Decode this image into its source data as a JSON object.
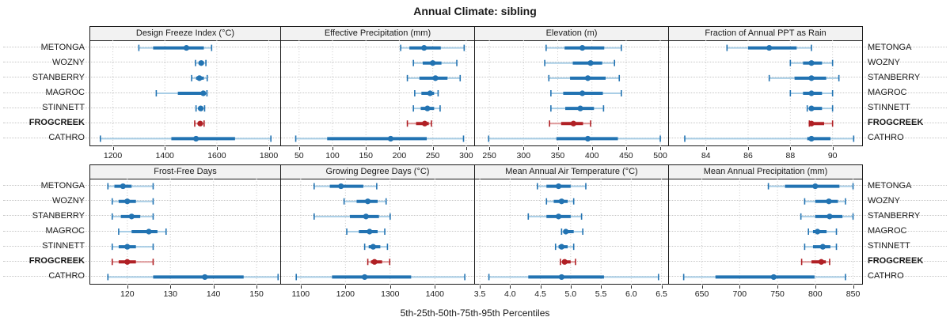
{
  "title": "Annual Climate: sibling",
  "caption": "5th-25th-50th-75th-95th Percentiles",
  "sites": [
    "METONGA",
    "WOZNY",
    "STANBERRY",
    "MAGROC",
    "STINNETT",
    "FROGCREEK",
    "CATHRO"
  ],
  "highlight_site": "FROGCREEK",
  "colors": {
    "series_normal": "#2273b2",
    "series_normal_light": "#a9cee6",
    "series_highlight": "#b02025",
    "series_highlight_light": "#e09a9b",
    "grid": "#c9c9c9",
    "header_bg": "#f2f2f2",
    "border": "#1a1a1a"
  },
  "chart_data": {
    "type": "dotplot-percentiles",
    "layout": "2 rows x 4 columns trellis",
    "percentile_order": [
      "5th",
      "25th",
      "50th",
      "75th",
      "95th"
    ],
    "legend_note": "thin light line = 5th-95th, thick line = 25th-75th, dot = 50th percentile",
    "panels": [
      {
        "title": "Design Freeze Index (°C)",
        "row": 0,
        "col": 0,
        "xlim": [
          1113,
          1844
        ],
        "ticks": [
          1200,
          1400,
          1600,
          1800
        ],
        "tick_labels": [
          "1200",
          "1400",
          "1600",
          "1800"
        ],
        "values": {
          "METONGA": [
            1300,
            1355,
            1483,
            1550,
            1580
          ],
          "WOZNY": [
            1518,
            1530,
            1540,
            1550,
            1558
          ],
          "STANBERRY": [
            1503,
            1520,
            1533,
            1550,
            1563
          ],
          "MAGROC": [
            1367,
            1450,
            1548,
            1556,
            1562
          ],
          "STINNETT": [
            1520,
            1530,
            1538,
            1547,
            1553
          ],
          "FROGCREEK": [
            1515,
            1527,
            1536,
            1545,
            1551
          ],
          "CATHRO": [
            1152,
            1425,
            1520,
            1670,
            1808
          ]
        }
      },
      {
        "title": "Effective Precipitation (mm)",
        "row": 0,
        "col": 1,
        "xlim": [
          23,
          312
        ],
        "ticks": [
          50,
          100,
          150,
          200,
          250,
          300
        ],
        "tick_labels": [
          "50",
          "100",
          "150",
          "200",
          "250",
          "300"
        ],
        "values": {
          "METONGA": [
            202,
            215,
            237,
            262,
            297
          ],
          "WOZNY": [
            221,
            235,
            250,
            263,
            286
          ],
          "STANBERRY": [
            212,
            230,
            254,
            272,
            291
          ],
          "MAGROC": [
            223,
            233,
            246,
            252,
            258
          ],
          "STINNETT": [
            221,
            232,
            242,
            252,
            261
          ],
          "FROGCREEK": [
            212,
            225,
            238,
            244,
            248
          ],
          "CATHRO": [
            45,
            92,
            187,
            241,
            296
          ]
        }
      },
      {
        "title": "Elevation (m)",
        "row": 0,
        "col": 2,
        "xlim": [
          229,
          511.5
        ],
        "ticks": [
          250,
          300,
          350,
          400,
          450,
          500
        ],
        "tick_labels": [
          "250",
          "300",
          "350",
          "400",
          "450",
          "500"
        ],
        "values": {
          "METONGA": [
            333,
            360,
            386,
            418,
            443
          ],
          "WOZNY": [
            331,
            372,
            398,
            415,
            433
          ],
          "STANBERRY": [
            337,
            368,
            394,
            420,
            440
          ],
          "MAGROC": [
            340,
            358,
            386,
            416,
            443
          ],
          "STINNETT": [
            340,
            361,
            383,
            403,
            417
          ],
          "FROGCREEK": [
            338,
            355,
            373,
            387,
            398
          ],
          "CATHRO": [
            249,
            348,
            394,
            438,
            500
          ]
        }
      },
      {
        "title": "Fraction of Annual PPT as Rain",
        "row": 0,
        "col": 3,
        "xlim": [
          82.25,
          91.4
        ],
        "ticks": [
          84,
          86,
          88,
          90
        ],
        "tick_labels": [
          "84",
          "86",
          "88",
          "90"
        ],
        "values": {
          "METONGA": [
            85.0,
            86.0,
            87.0,
            88.3,
            89.0
          ],
          "WOZNY": [
            88.0,
            88.6,
            89.0,
            89.5,
            90.0
          ],
          "STANBERRY": [
            87.0,
            88.2,
            89.0,
            89.7,
            90.3
          ],
          "MAGROC": [
            88.0,
            88.6,
            89.0,
            89.5,
            90.0
          ],
          "STINNETT": [
            88.8,
            89.0,
            89.0,
            89.5,
            90.0
          ],
          "FROGCREEK": [
            88.9,
            89.0,
            89.0,
            89.6,
            90.0
          ],
          "CATHRO": [
            83.0,
            88.8,
            89.0,
            89.9,
            91.0
          ]
        }
      },
      {
        "title": "Frost-Free Days",
        "row": 1,
        "col": 0,
        "xlim": [
          111.4,
          155.5
        ],
        "ticks": [
          120,
          130,
          140,
          150
        ],
        "tick_labels": [
          "120",
          "130",
          "140",
          "150"
        ],
        "values": {
          "METONGA": [
            115.5,
            117,
            119,
            121,
            126
          ],
          "WOZNY": [
            116.5,
            118,
            120,
            122,
            126
          ],
          "STANBERRY": [
            116.5,
            118.5,
            121,
            123,
            126
          ],
          "MAGROC": [
            118,
            121,
            125,
            127,
            129
          ],
          "STINNETT": [
            116.5,
            118,
            120,
            122,
            126
          ],
          "FROGCREEK": [
            116.5,
            118,
            120,
            122,
            126
          ],
          "CATHRO": [
            115.5,
            126,
            138,
            147,
            155
          ]
        }
      },
      {
        "title": "Growing Degree Days (°C)",
        "row": 1,
        "col": 1,
        "xlim": [
          1056,
          1488
        ],
        "ticks": [
          1100,
          1200,
          1300,
          1400
        ],
        "tick_labels": [
          "1100",
          "1200",
          "1300",
          "1400"
        ],
        "values": {
          "METONGA": [
            1130,
            1165,
            1190,
            1240,
            1270
          ],
          "WOZNY": [
            1197,
            1225,
            1250,
            1272,
            1291
          ],
          "STANBERRY": [
            1130,
            1210,
            1246,
            1275,
            1300
          ],
          "MAGROC": [
            1203,
            1230,
            1254,
            1272,
            1288
          ],
          "STINNETT": [
            1243,
            1252,
            1262,
            1278,
            1294
          ],
          "FROGCREEK": [
            1250,
            1257,
            1265,
            1282,
            1299
          ],
          "CATHRO": [
            1090,
            1170,
            1243,
            1347,
            1467
          ]
        }
      },
      {
        "title": "Mean Annual Air Temperature (°C)",
        "row": 1,
        "col": 2,
        "xlim": [
          3.42,
          6.61
        ],
        "ticks": [
          3.5,
          4.0,
          4.5,
          5.0,
          5.5,
          6.0,
          6.5
        ],
        "tick_labels": [
          "3.5",
          "4.0",
          "4.5",
          "5.0",
          "5.5",
          "6.0",
          "6.5"
        ],
        "values": {
          "METONGA": [
            4.45,
            4.6,
            4.8,
            5.0,
            5.25
          ],
          "WOZNY": [
            4.6,
            4.72,
            4.85,
            4.95,
            5.05
          ],
          "STANBERRY": [
            4.3,
            4.6,
            4.8,
            5.0,
            5.18
          ],
          "MAGROC": [
            4.85,
            4.88,
            4.92,
            5.05,
            5.2
          ],
          "STINNETT": [
            4.75,
            4.8,
            4.85,
            4.95,
            5.05
          ],
          "FROGCREEK": [
            4.83,
            4.87,
            4.9,
            5.0,
            5.08
          ],
          "CATHRO": [
            3.65,
            4.3,
            4.85,
            5.55,
            6.45
          ]
        }
      },
      {
        "title": "Mean Annual Precipitation (mm)",
        "row": 1,
        "col": 3,
        "xlim": [
          606.5,
          862
        ],
        "ticks": [
          650,
          700,
          750,
          800,
          850
        ],
        "tick_labels": [
          "650",
          "700",
          "750",
          "800",
          "850"
        ],
        "values": {
          "METONGA": [
            738,
            760,
            800,
            832,
            850
          ],
          "WOZNY": [
            786,
            800,
            818,
            830,
            840
          ],
          "STANBERRY": [
            781,
            800,
            819,
            836,
            850
          ],
          "MAGROC": [
            791,
            797,
            803,
            815,
            828
          ],
          "STINNETT": [
            786,
            797,
            810,
            820,
            828
          ],
          "FROGCREEK": [
            782,
            795,
            808,
            814,
            819
          ],
          "CATHRO": [
            626,
            668,
            745,
            799,
            840
          ]
        }
      }
    ]
  }
}
